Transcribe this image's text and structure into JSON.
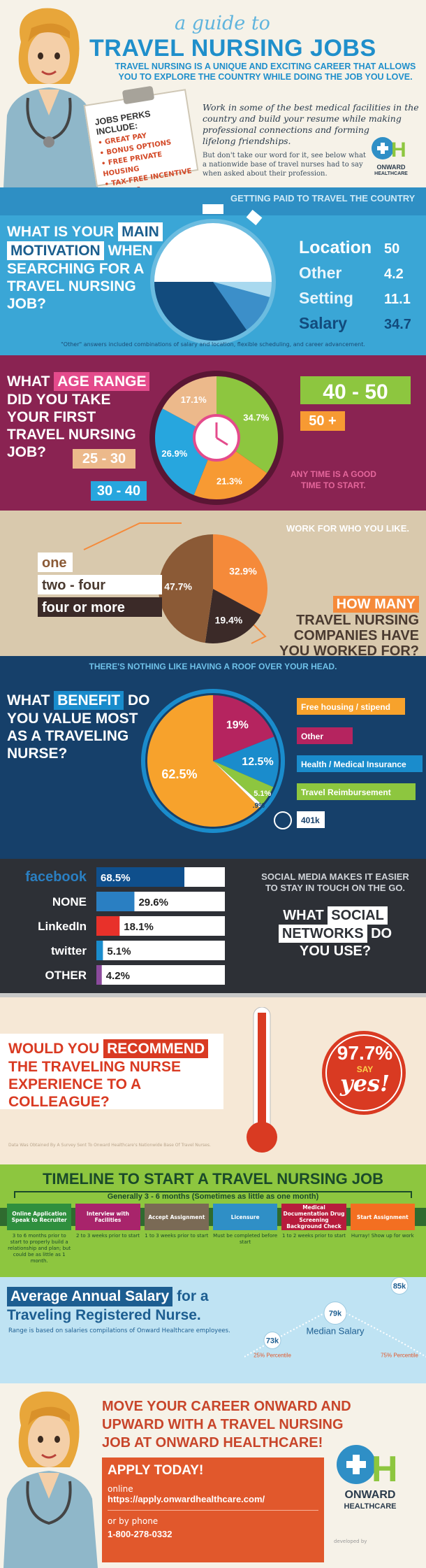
{
  "header": {
    "title_small": "a guide to",
    "title": "TRAVEL NURSING JOBS",
    "subtitle_line1": "TRAVEL NURSING IS A UNIQUE AND EXCITING CAREER THAT ALLOWS",
    "subtitle_line2": "YOU TO EXPLORE THE COUNTRY WHILE DOING THE JOB YOU LOVE.",
    "clipboard_title": "JOBS PERKS INCLUDE:",
    "perks": [
      "• GREAT PAY",
      "• BONUS OPTIONS",
      "• FREE PRIVATE HOUSING",
      "• TAX-FREE INCENTIVE OPTIONS"
    ],
    "intro_line1": "Work in some of the best medical facilities in the",
    "intro_line2": "country and build your resume while making",
    "intro_line3": "professional connections and forming",
    "intro_line4": "lifelong friendships.",
    "intro2_line1": "But don't take our word for it, see below what",
    "intro2_line2": "a nationwide base of travel nurses had to say",
    "intro2_line3": "when asked about their profession.",
    "logo_line1": "ONWARD",
    "logo_line2": "HEALTHCARE"
  },
  "motivation": {
    "question_line1": "WHAT IS YOUR",
    "question_hl": "MAIN",
    "question_line2": "MOTIVATION",
    "question_line2b": "WHEN",
    "question_line3": "SEARCHING FOR A",
    "question_line4": "TRAVEL NURSING",
    "question_line5": "JOB?",
    "tagline": "GETTING PAID TO TRAVEL THE COUNTRY",
    "footnote": "\"Other\" answers included combinations of salary and location, flexible scheduling, and career advancement."
  },
  "age": {
    "question_line1": "WHAT",
    "question_hl": "AGE RANGE",
    "question_line2": "DID YOU TAKE",
    "question_line3": "YOUR FIRST",
    "question_line4": "TRAVEL NURSING",
    "question_line5": "JOB?",
    "note_line1": "ANY TIME IS A GOOD",
    "note_line2": "TIME TO START."
  },
  "companies": {
    "tagline": "WORK FOR WHO YOU LIKE.",
    "question_hl": "HOW MANY",
    "question_line2": "TRAVEL NURSING",
    "question_line3": "COMPANIES HAVE",
    "question_line4": "YOU WORKED FOR?"
  },
  "benefit": {
    "tagline": "THERE'S NOTHING LIKE HAVING A ROOF OVER YOUR HEAD.",
    "question_line1": "WHAT",
    "question_hl": "BENEFIT",
    "question_line1b": "DO",
    "question_line2": "YOU VALUE MOST",
    "question_line3": "AS A TRAVELING",
    "question_line4": "NURSE?"
  },
  "social": {
    "tagline_line1": "SOCIAL MEDIA MAKES IT EASIER",
    "tagline_line2": "TO STAY IN TOUCH ON THE GO.",
    "question_line1a": "WHAT",
    "question_line1b": "SOCIAL",
    "question_line2a": "NETWORKS",
    "question_line2b": "DO",
    "question_line3": "YOU USE?"
  },
  "recommend": {
    "question_line1a": "WOULD YOU",
    "question_hl": "RECOMMEND",
    "question_line2": "THE TRAVELING NURSE",
    "question_line3": "EXPERIENCE TO A",
    "question_line4": "COLLEAGUE?",
    "value": "97.7%",
    "say": "SAY",
    "yes": "yes!",
    "source": "Data Was Obtained By A Survey Sent To Onward Healthcare's Nationwide Base Of Travel Nurses."
  },
  "timeline": {
    "title": "TIMELINE TO START A TRAVEL NURSING JOB",
    "span": "Generally 3 - 6 months (Sometimes as little as one month)",
    "steps": [
      {
        "label": "Online Application Speak to Recruiter",
        "time": "3 to 6 months prior to start to properly build a relationship and plan; but could be as little as 1 month.",
        "color": "#2f8f3e"
      },
      {
        "label": "Interview with Facilities",
        "time": "2 to 3 weeks prior to start",
        "color": "#a8246b"
      },
      {
        "label": "Accept Assignment",
        "time": "1 to 3 weeks prior to start",
        "color": "#7a6a55"
      },
      {
        "label": "Licensure",
        "time": "Must be completed before start",
        "color": "#2f8fc6"
      },
      {
        "label": "Medical Documentation Drug Screening Background Check",
        "time": "1 to 2 weeks prior to start",
        "color": "#b71c3c"
      },
      {
        "label": "Start Assignment",
        "time": "Hurray! Show up for work",
        "color": "#f36f21"
      }
    ]
  },
  "salary": {
    "title_a": "Average Annual Salary",
    "title_b": "for a",
    "title_line2": "Traveling Registered Nurse.",
    "note": "Range is based on salaries compilations of Onward Healthcare employees.",
    "median_label": "Median Salary"
  },
  "footer": {
    "line1": "MOVE YOUR CAREER ONWARD AND",
    "line2": "UPWARD WITH A TRAVEL NURSING",
    "line3": "JOB AT ONWARD HEALTHCARE!",
    "apply": "APPLY TODAY!",
    "online": "online",
    "url": "https://apply.onwardhealthcare.com/",
    "phone_label": "or by phone",
    "phone": "1-800-278-0332",
    "logo_line1": "ONWARD",
    "logo_line2": "HEALTHCARE",
    "credit": "developed by"
  },
  "chart_data": [
    {
      "type": "pie",
      "id": "motivation",
      "categories": [
        "Location",
        "Other",
        "Setting",
        "Salary"
      ],
      "values": [
        50,
        4.2,
        11.1,
        34.7
      ],
      "colors": [
        "#ffffff",
        "#a9d9ef",
        "#3c8fc9",
        "#124b7d"
      ]
    },
    {
      "type": "pie",
      "id": "age",
      "categories": [
        "40 - 50",
        "50 +",
        "30 - 40",
        "25 - 30"
      ],
      "values": [
        34.7,
        21.3,
        26.9,
        17.1
      ],
      "value_labels": [
        "34.7%",
        "21.3%",
        "26.9%",
        "17.1%"
      ],
      "colors": [
        "#8dc63f",
        "#f79a33",
        "#27a6de",
        "#ecb98b"
      ]
    },
    {
      "type": "pie",
      "id": "companies",
      "categories": [
        "two - four",
        "four or more",
        "one"
      ],
      "values": [
        32.9,
        19.4,
        47.7
      ],
      "value_labels": [
        "32.9%",
        "19.4%",
        "47.7%"
      ],
      "colors": [
        "#f58a3a",
        "#3b2a28",
        "#8b5a36"
      ]
    },
    {
      "type": "pie",
      "id": "benefit",
      "categories": [
        "Other",
        "Health / Medical Insurance",
        "Travel Reimbursement",
        "401k",
        "Free housing / stipend"
      ],
      "values": [
        19,
        12.5,
        5.1,
        0.9,
        62.5
      ],
      "value_labels": [
        "19%",
        "12.5%",
        "5.1%",
        ".9%",
        "62.5%"
      ],
      "colors": [
        "#b5245f",
        "#1a8ccc",
        "#8dc63f",
        "#ffffff",
        "#f7a22c"
      ]
    },
    {
      "type": "bar",
      "id": "social",
      "categories": [
        "facebook",
        "NONE",
        "LinkedIn",
        "twitter",
        "OTHER"
      ],
      "values": [
        68.5,
        29.6,
        18.1,
        5.1,
        4.2
      ],
      "value_labels": [
        "68.5%",
        "29.6%",
        "18.1%",
        "5.1%",
        "4.2%"
      ],
      "colors": [
        "#0f4f8c",
        "#2a7fc2",
        "#e8312a",
        "#1a8ccc",
        "#8b4a9c"
      ],
      "xlim": [
        0,
        100
      ]
    },
    {
      "type": "line",
      "id": "salary",
      "categories": [
        "25% Percentile",
        "Median Salary",
        "75% Percentile"
      ],
      "values": [
        73,
        79,
        85
      ],
      "value_labels": [
        "73k",
        "79k",
        "85k"
      ],
      "tick_labels": [
        "25% Percentile",
        "75% Percentile"
      ]
    }
  ]
}
